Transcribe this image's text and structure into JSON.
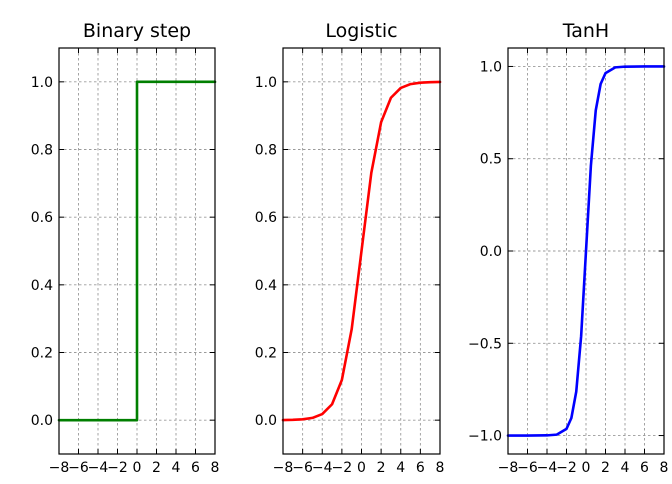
{
  "chart_data": [
    {
      "type": "line",
      "title": "Binary step",
      "xlabel": "",
      "ylabel": "",
      "xlim": [
        -8,
        8
      ],
      "ylim": [
        -0.1,
        1.1
      ],
      "xticks": [
        -8,
        -6,
        -4,
        -2,
        0,
        2,
        4,
        6,
        8
      ],
      "xtick_labels": [
        "−8",
        "−6",
        "−4",
        "−2",
        "0",
        "2",
        "4",
        "6",
        "8"
      ],
      "yticks": [
        0.0,
        0.2,
        0.4,
        0.6,
        0.8,
        1.0
      ],
      "ytick_labels": [
        "0.0",
        "0.2",
        "0.4",
        "0.6",
        "0.8",
        "1.0"
      ],
      "grid": true,
      "color": "#007f00",
      "x": [
        -8,
        -6,
        -4,
        -2,
        0,
        0,
        2,
        4,
        6,
        8
      ],
      "y": [
        0,
        0,
        0,
        0,
        0,
        1,
        1,
        1,
        1,
        1
      ]
    },
    {
      "type": "line",
      "title": "Logistic",
      "xlabel": "",
      "ylabel": "",
      "xlim": [
        -8,
        8
      ],
      "ylim": [
        -0.1,
        1.1
      ],
      "xticks": [
        -8,
        -6,
        -4,
        -2,
        0,
        2,
        4,
        6,
        8
      ],
      "xtick_labels": [
        "−8",
        "−6",
        "−4",
        "−2",
        "0",
        "2",
        "4",
        "6",
        "8"
      ],
      "yticks": [
        0.0,
        0.2,
        0.4,
        0.6,
        0.8,
        1.0
      ],
      "ytick_labels": [
        "0.0",
        "0.2",
        "0.4",
        "0.6",
        "0.8",
        "1.0"
      ],
      "grid": true,
      "color": "#ff0000",
      "x": [
        -8,
        -7,
        -6,
        -5,
        -4,
        -3,
        -2,
        -1,
        0,
        1,
        2,
        3,
        4,
        5,
        6,
        7,
        8
      ],
      "y": [
        0.0003,
        0.0009,
        0.0025,
        0.0067,
        0.018,
        0.047,
        0.119,
        0.269,
        0.5,
        0.731,
        0.881,
        0.953,
        0.982,
        0.9933,
        0.9975,
        0.9991,
        0.9997
      ]
    },
    {
      "type": "line",
      "title": "TanH",
      "xlabel": "",
      "ylabel": "",
      "xlim": [
        -8,
        8
      ],
      "ylim": [
        -1.1,
        1.1
      ],
      "xticks": [
        -8,
        -6,
        -4,
        -2,
        0,
        2,
        4,
        6,
        8
      ],
      "xtick_labels": [
        "−8",
        "−6",
        "−4",
        "−2",
        "0",
        "2",
        "4",
        "6",
        "8"
      ],
      "yticks": [
        -1.0,
        -0.5,
        0.0,
        0.5,
        1.0
      ],
      "ytick_labels": [
        "−1.0",
        "−0.5",
        "0.0",
        "0.5",
        "1.0"
      ],
      "grid": true,
      "color": "#0000ff",
      "x": [
        -8,
        -6,
        -4,
        -3,
        -2,
        -1.5,
        -1,
        -0.5,
        0,
        0.5,
        1,
        1.5,
        2,
        3,
        4,
        6,
        8
      ],
      "y": [
        -1.0,
        -1.0,
        -0.999,
        -0.995,
        -0.964,
        -0.905,
        -0.762,
        -0.462,
        0.0,
        0.462,
        0.762,
        0.905,
        0.964,
        0.995,
        0.999,
        1.0,
        1.0
      ]
    }
  ]
}
